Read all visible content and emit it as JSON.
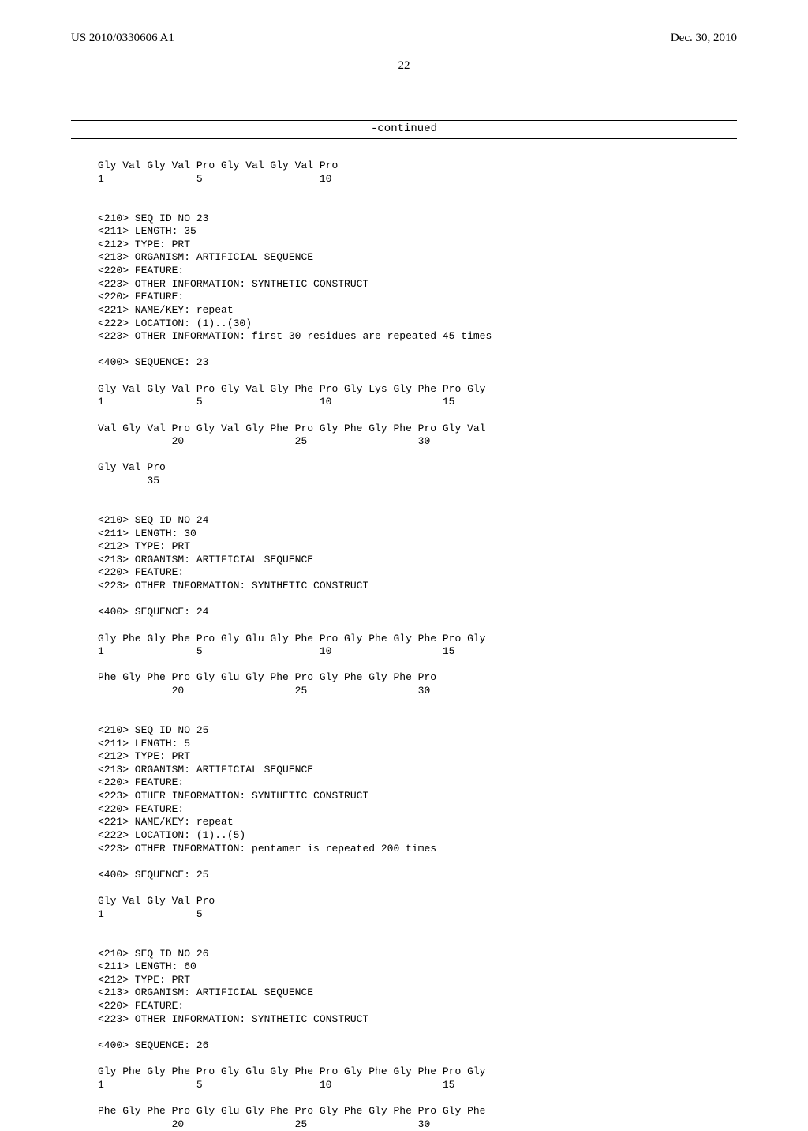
{
  "header": {
    "pub_num": "US 2010/0330606 A1",
    "pub_date": "Dec. 30, 2010",
    "page_num": "22"
  },
  "continued": "-continued",
  "seq_text": "Gly Val Gly Val Pro Gly Val Gly Val Pro\n1               5                   10\n\n\n<210> SEQ ID NO 23\n<211> LENGTH: 35\n<212> TYPE: PRT\n<213> ORGANISM: ARTIFICIAL SEQUENCE\n<220> FEATURE:\n<223> OTHER INFORMATION: SYNTHETIC CONSTRUCT\n<220> FEATURE:\n<221> NAME/KEY: repeat\n<222> LOCATION: (1)..(30)\n<223> OTHER INFORMATION: first 30 residues are repeated 45 times\n\n<400> SEQUENCE: 23\n\nGly Val Gly Val Pro Gly Val Gly Phe Pro Gly Lys Gly Phe Pro Gly\n1               5                   10                  15\n\nVal Gly Val Pro Gly Val Gly Phe Pro Gly Phe Gly Phe Pro Gly Val\n            20                  25                  30\n\nGly Val Pro\n        35\n\n\n<210> SEQ ID NO 24\n<211> LENGTH: 30\n<212> TYPE: PRT\n<213> ORGANISM: ARTIFICIAL SEQUENCE\n<220> FEATURE:\n<223> OTHER INFORMATION: SYNTHETIC CONSTRUCT\n\n<400> SEQUENCE: 24\n\nGly Phe Gly Phe Pro Gly Glu Gly Phe Pro Gly Phe Gly Phe Pro Gly\n1               5                   10                  15\n\nPhe Gly Phe Pro Gly Glu Gly Phe Pro Gly Phe Gly Phe Pro\n            20                  25                  30\n\n\n<210> SEQ ID NO 25\n<211> LENGTH: 5\n<212> TYPE: PRT\n<213> ORGANISM: ARTIFICIAL SEQUENCE\n<220> FEATURE:\n<223> OTHER INFORMATION: SYNTHETIC CONSTRUCT\n<220> FEATURE:\n<221> NAME/KEY: repeat\n<222> LOCATION: (1)..(5)\n<223> OTHER INFORMATION: pentamer is repeated 200 times\n\n<400> SEQUENCE: 25\n\nGly Val Gly Val Pro\n1               5\n\n\n<210> SEQ ID NO 26\n<211> LENGTH: 60\n<212> TYPE: PRT\n<213> ORGANISM: ARTIFICIAL SEQUENCE\n<220> FEATURE:\n<223> OTHER INFORMATION: SYNTHETIC CONSTRUCT\n\n<400> SEQUENCE: 26\n\nGly Phe Gly Phe Pro Gly Glu Gly Phe Pro Gly Phe Gly Phe Pro Gly\n1               5                   10                  15\n\nPhe Gly Phe Pro Gly Glu Gly Phe Pro Gly Phe Gly Phe Pro Gly Phe\n            20                  25                  30"
}
